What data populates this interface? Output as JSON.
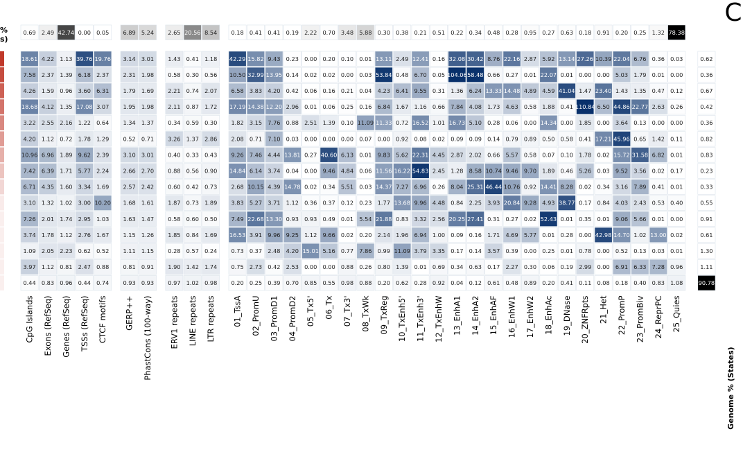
{
  "panel_letter": "C",
  "left_label_fragment": [
    "%",
    "s)"
  ],
  "right_label": "Genome % (States)",
  "chart_data": {
    "type": "heatmap",
    "panel": "C",
    "columns": [
      "CpG Islands",
      "Exons (RefSeq)",
      "Genes (RefSeq)",
      "TSSs (RefSeq)",
      "CTCF motifs",
      "GERP++",
      "PhastCons (100-way)",
      "ERV1 repeats",
      "LINE repeats",
      "LTR repeats",
      "01_TssA",
      "02_PromU",
      "03_PromD1",
      "04_PromD2",
      "05_Tx5'",
      "06_Tx",
      "07_Tx3'",
      "08_TxWk",
      "09_TxReg",
      "10_TxEnh5'",
      "11_TxEnh3'",
      "12_TxEnhW",
      "13_EnhA1",
      "14_EnhA2",
      "15_EnhAF",
      "16_EnhW1",
      "17_EnhW2",
      "18_EnhAc",
      "19_DNase",
      "20_ZNFRpts",
      "21_Het",
      "22_PromP",
      "23_PromBiv",
      "24_ReprPC",
      "25_Quies"
    ],
    "column_groups": [
      [
        0,
        4
      ],
      [
        5,
        6
      ],
      [
        7,
        9
      ],
      [
        10,
        34
      ]
    ],
    "genome_percent_features": [
      0.69,
      2.49,
      42.74,
      0.0,
      0.05,
      6.89,
      5.24,
      2.65,
      20.56,
      8.54,
      0.18,
      0.41,
      0.41,
      0.19,
      2.22,
      0.7,
      3.48,
      5.88,
      0.3,
      0.38,
      0.21,
      0.51,
      0.22,
      0.34,
      0.48,
      0.28,
      0.95,
      0.27,
      0.63,
      0.18,
      0.91,
      0.2,
      0.25,
      1.32,
      78.38
    ],
    "rows": [
      [
        18.61,
        4.22,
        1.13,
        39.76,
        19.76,
        3.14,
        3.01,
        1.43,
        0.41,
        1.18,
        42.29,
        15.82,
        9.43,
        0.23,
        0.0,
        0.2,
        0.1,
        0.01,
        13.11,
        2.49,
        12.41,
        0.16,
        32.08,
        30.42,
        8.76,
        22.16,
        2.87,
        5.92,
        13.14,
        27.26,
        10.39,
        22.04,
        6.76,
        0.36,
        0.03
      ],
      [
        7.58,
        2.37,
        1.39,
        6.18,
        2.37,
        2.31,
        1.98,
        0.58,
        0.3,
        0.56,
        10.5,
        32.99,
        13.95,
        0.14,
        0.02,
        0.02,
        0.0,
        0.03,
        53.84,
        0.48,
        6.7,
        0.05,
        104.06,
        58.48,
        0.66,
        0.27,
        0.01,
        22.07,
        0.01,
        0.0,
        0.0,
        5.03,
        1.79,
        0.01,
        0.0
      ],
      [
        4.26,
        1.59,
        0.96,
        3.6,
        6.31,
        1.79,
        1.69,
        2.21,
        0.74,
        2.07,
        6.58,
        3.83,
        4.2,
        0.42,
        0.06,
        0.16,
        0.21,
        0.04,
        4.23,
        6.41,
        9.55,
        0.31,
        1.36,
        6.24,
        13.33,
        14.48,
        4.89,
        4.59,
        41.04,
        1.47,
        23.4,
        1.43,
        1.35,
        0.47,
        0.12
      ],
      [
        18.68,
        4.12,
        1.35,
        17.08,
        3.07,
        1.95,
        1.98,
        2.11,
        0.87,
        1.72,
        17.19,
        14.38,
        12.2,
        2.96,
        0.01,
        0.06,
        0.25,
        0.16,
        6.84,
        1.67,
        1.16,
        0.66,
        7.84,
        4.08,
        1.73,
        4.63,
        0.58,
        1.88,
        0.41,
        110.84,
        6.5,
        44.86,
        22.77,
        2.63,
        0.26
      ],
      [
        3.22,
        2.55,
        2.16,
        1.22,
        0.64,
        1.34,
        1.37,
        0.34,
        0.59,
        0.3,
        1.82,
        3.15,
        7.76,
        0.88,
        2.51,
        1.39,
        0.1,
        11.09,
        11.33,
        0.72,
        16.52,
        1.01,
        16.73,
        5.1,
        0.28,
        0.06,
        0.0,
        14.34,
        0.0,
        1.85,
        0.0,
        3.64,
        0.13,
        0.0,
        0.0
      ],
      [
        4.2,
        1.12,
        0.72,
        1.78,
        1.29,
        0.52,
        0.71,
        3.26,
        1.37,
        2.86,
        2.08,
        0.71,
        7.1,
        0.03,
        0.0,
        0.0,
        0.0,
        0.07,
        0.0,
        0.92,
        0.08,
        0.02,
        0.09,
        0.09,
        0.14,
        0.79,
        0.89,
        0.5,
        0.58,
        0.41,
        17.21,
        45.96,
        0.65,
        1.42,
        0.11
      ],
      [
        10.96,
        6.96,
        1.89,
        9.62,
        2.39,
        3.1,
        3.01,
        0.4,
        0.33,
        0.43,
        9.26,
        7.46,
        4.44,
        13.81,
        0.27,
        40.6,
        6.13,
        0.01,
        9.83,
        5.62,
        22.31,
        4.45,
        2.87,
        2.02,
        0.66,
        5.57,
        0.58,
        0.07,
        0.1,
        1.78,
        0.02,
        15.72,
        31.58,
        6.82,
        0.01
      ],
      [
        7.42,
        6.39,
        1.71,
        5.77,
        2.24,
        2.66,
        2.7,
        0.88,
        0.56,
        0.9,
        14.84,
        6.14,
        3.74,
        0.04,
        0.0,
        9.46,
        4.84,
        0.06,
        11.56,
        16.22,
        54.83,
        2.45,
        1.28,
        8.58,
        10.74,
        9.46,
        9.7,
        1.89,
        0.46,
        5.26,
        0.03,
        9.52,
        3.56,
        0.02,
        0.17
      ],
      [
        6.71,
        4.35,
        1.6,
        3.34,
        1.69,
        2.57,
        2.42,
        0.6,
        0.42,
        0.73,
        2.68,
        10.15,
        4.39,
        14.78,
        0.02,
        0.34,
        5.51,
        0.03,
        14.37,
        7.27,
        6.96,
        0.26,
        8.04,
        25.31,
        46.44,
        10.76,
        0.92,
        14.41,
        8.28,
        0.02,
        0.34,
        3.16,
        7.89,
        0.41,
        0.01
      ],
      [
        3.1,
        1.32,
        1.02,
        3.0,
        10.2,
        1.68,
        1.61,
        1.87,
        0.73,
        1.89,
        3.83,
        5.27,
        3.71,
        1.12,
        0.36,
        0.37,
        0.12,
        0.23,
        1.77,
        13.68,
        9.96,
        4.48,
        0.84,
        2.25,
        3.93,
        20.84,
        9.28,
        4.93,
        38.77,
        0.17,
        0.84,
        4.03,
        2.43,
        0.53,
        0.4
      ],
      [
        7.26,
        2.01,
        1.74,
        2.95,
        1.03,
        1.63,
        1.47,
        0.58,
        0.6,
        0.5,
        7.49,
        22.68,
        13.3,
        0.93,
        0.93,
        0.49,
        0.01,
        5.54,
        21.88,
        0.83,
        3.32,
        2.56,
        20.25,
        27.41,
        0.31,
        0.27,
        0.02,
        52.43,
        0.01,
        0.35,
        0.01,
        9.06,
        5.66,
        0.01,
        0.0
      ],
      [
        3.74,
        1.78,
        1.12,
        2.76,
        1.67,
        1.15,
        1.26,
        1.85,
        0.84,
        1.69,
        16.53,
        3.91,
        9.96,
        9.25,
        1.12,
        9.66,
        0.02,
        0.2,
        2.14,
        1.96,
        6.94,
        1.0,
        0.09,
        0.16,
        1.71,
        4.69,
        5.77,
        0.01,
        0.28,
        0.0,
        42.98,
        14.7,
        1.02,
        13.0,
        0.02
      ],
      [
        1.09,
        2.05,
        2.23,
        0.62,
        0.52,
        1.11,
        1.15,
        0.28,
        0.57,
        0.24,
        0.73,
        0.37,
        2.48,
        4.2,
        15.01,
        5.16,
        0.77,
        7.86,
        0.99,
        11.09,
        3.79,
        3.35,
        0.17,
        0.14,
        3.57,
        0.39,
        0.0,
        0.25,
        0.01,
        0.78,
        0.0,
        0.52,
        0.13,
        0.03,
        0.01
      ],
      [
        3.97,
        1.12,
        0.81,
        2.47,
        0.88,
        0.81,
        0.91,
        1.9,
        1.42,
        1.74,
        0.75,
        2.73,
        0.42,
        2.53,
        0.0,
        0.0,
        0.88,
        0.26,
        0.8,
        1.39,
        0.01,
        0.69,
        0.34,
        0.63,
        0.17,
        2.27,
        0.3,
        0.06,
        0.19,
        2.99,
        0.0,
        6.91,
        6.33,
        7.28,
        0.96
      ],
      [
        0.44,
        0.83,
        0.96,
        0.44,
        0.74,
        0.93,
        0.93,
        0.97,
        1.02,
        0.98,
        0.2,
        0.25,
        0.39,
        0.7,
        0.85,
        0.55,
        0.98,
        0.88,
        0.2,
        0.62,
        0.28,
        0.92,
        0.04,
        0.12,
        0.61,
        0.48,
        0.89,
        0.2,
        0.41,
        0.11,
        0.08,
        0.18,
        0.4,
        0.83,
        1.08
      ]
    ],
    "genome_percent_states": [
      0.62,
      0.36,
      0.67,
      0.42,
      0.36,
      0.82,
      0.83,
      0.23,
      0.33,
      0.55,
      0.91,
      0.61,
      1.3,
      1.11,
      90.78
    ],
    "color_scale": {
      "low": "#ffffff",
      "high": "#08306b",
      "top_row_high": "#000000",
      "accent": "#c0392b"
    }
  }
}
